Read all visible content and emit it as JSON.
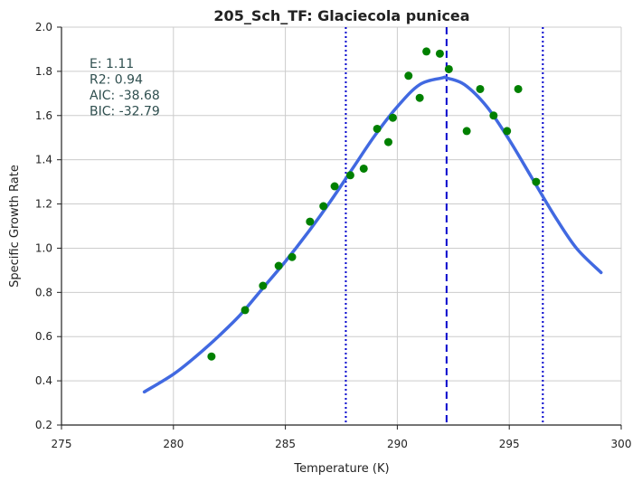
{
  "chart_data": {
    "type": "scatter",
    "title": "205_Sch_TF: Glaciecola punicea",
    "xlabel": "Temperature (K)",
    "ylabel": "Specific Growth Rate",
    "xlim": [
      275,
      300
    ],
    "ylim": [
      0.2,
      2.0
    ],
    "xticks": [
      "275",
      "280",
      "285",
      "290",
      "295",
      "300"
    ],
    "yticks": [
      "0.2",
      "0.4",
      "0.6",
      "0.8",
      "1.0",
      "1.2",
      "1.4",
      "1.6",
      "1.8",
      "2.0"
    ],
    "grid": true,
    "points": {
      "color": "#008000",
      "x": [
        281.7,
        283.2,
        284.0,
        284.7,
        285.3,
        286.1,
        286.7,
        287.2,
        287.9,
        288.5,
        289.1,
        289.6,
        289.8,
        290.5,
        291.0,
        291.3,
        291.9,
        292.3,
        293.1,
        293.7,
        294.3,
        294.9,
        295.4,
        296.2
      ],
      "y": [
        0.51,
        0.72,
        0.83,
        0.92,
        0.96,
        1.12,
        1.19,
        1.28,
        1.33,
        1.36,
        1.54,
        1.48,
        1.59,
        1.78,
        1.68,
        1.89,
        1.88,
        1.81,
        1.53,
        1.72,
        1.6,
        1.53,
        1.72,
        1.3
      ]
    },
    "fit_curve": {
      "color": "#4169E1",
      "x": [
        278.7,
        280,
        281,
        282,
        283,
        284,
        285,
        286,
        287,
        288,
        289,
        290,
        291,
        292,
        292.2,
        293,
        294,
        295,
        296,
        297,
        298,
        299.1
      ],
      "y": [
        0.35,
        0.43,
        0.51,
        0.6,
        0.7,
        0.82,
        0.94,
        1.07,
        1.21,
        1.36,
        1.51,
        1.64,
        1.74,
        1.77,
        1.77,
        1.74,
        1.64,
        1.49,
        1.32,
        1.15,
        1.0,
        0.89
      ]
    },
    "vlines": [
      {
        "x": 287.7,
        "style": "dotted",
        "color": "#0000CD"
      },
      {
        "x": 292.2,
        "style": "dashed",
        "color": "#0000CD"
      },
      {
        "x": 296.5,
        "style": "dotted",
        "color": "#0000CD"
      }
    ],
    "stats": {
      "color": "#2F4F4F",
      "lines": [
        "E:  1.11",
        "R2:  0.94",
        "AIC: -38.68",
        "BIC: -32.79"
      ]
    }
  }
}
